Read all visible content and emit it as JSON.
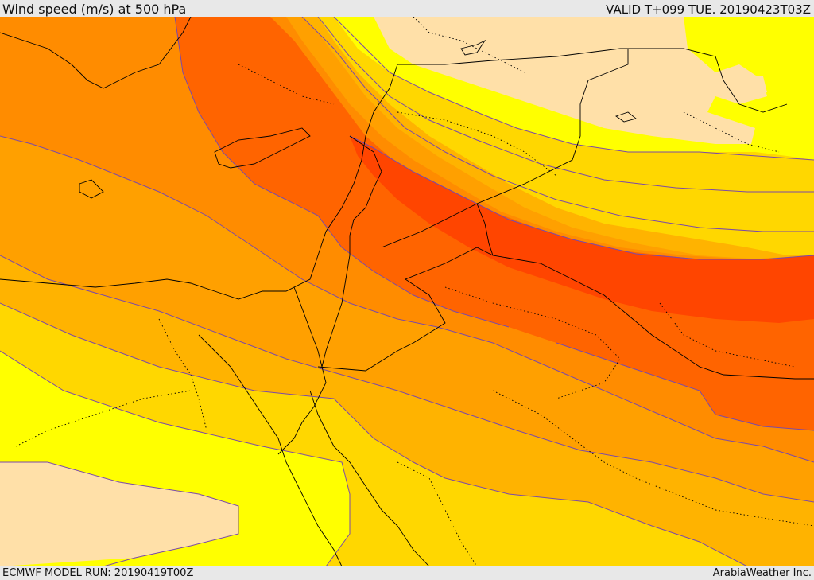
{
  "header": {
    "title": "Wind speed (m/s) at 500 hPa",
    "valid": "VALID T+099 TUE. 20190423T03Z"
  },
  "footer": {
    "model_run": "ECMWF MODEL RUN: 20190419T00Z",
    "credit": "ArabiaWeather Inc."
  },
  "map": {
    "field": "wind-speed-500hPa",
    "band_colors": {
      "lowest": "#ffe0a8",
      "low": "#ffff00",
      "light": "#ffd700",
      "moderate": "#ffb300",
      "medium": "#ffa000",
      "strong": "#ff8c00",
      "stronger": "#ff6400",
      "strongest": "#ff4500"
    },
    "contour_color": "#7b4aa8",
    "border_color": "#000000"
  }
}
